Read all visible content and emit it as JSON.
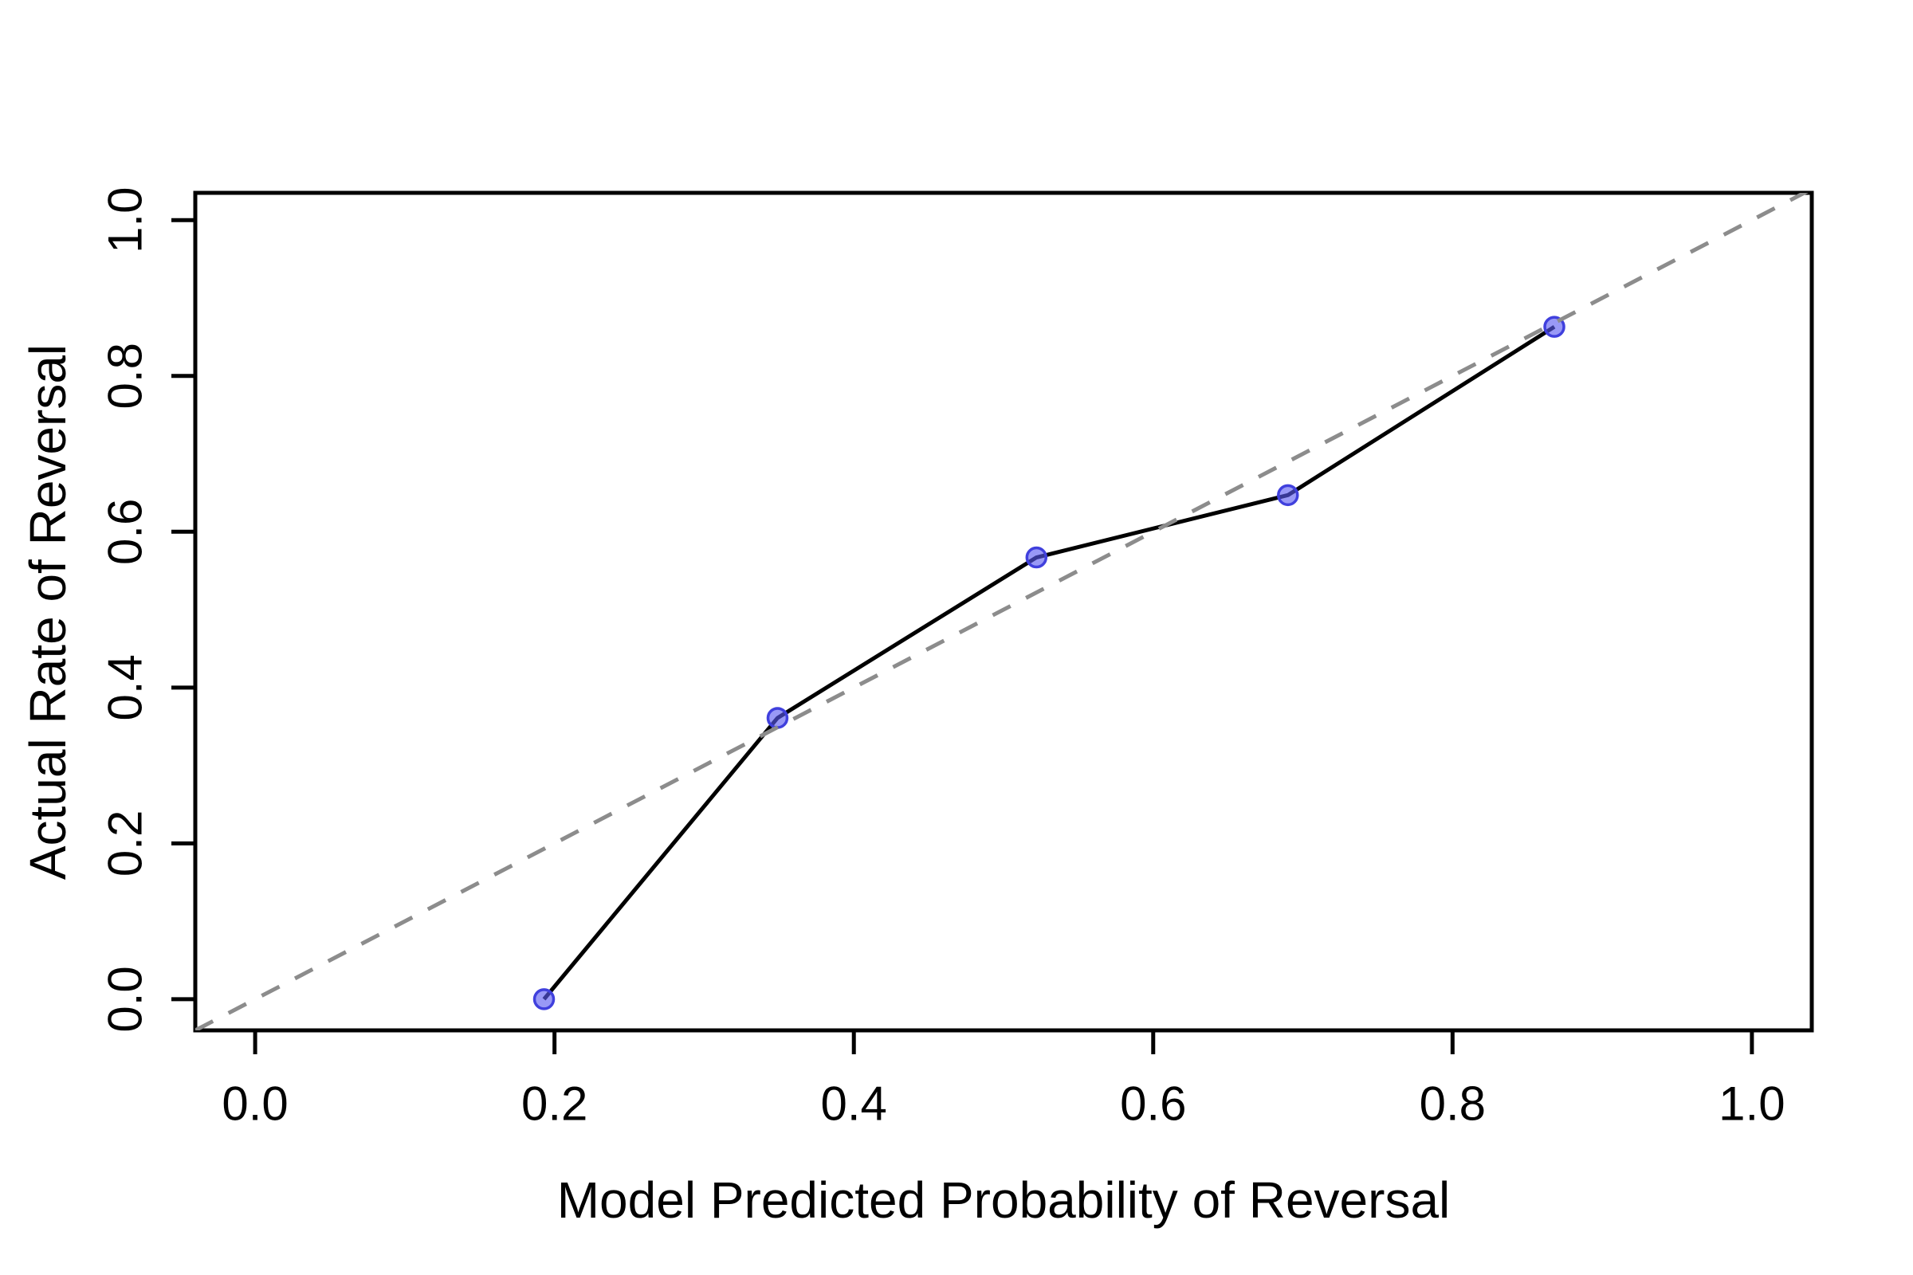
{
  "figure": {
    "background": "#ffffff",
    "axis_color": "#000000",
    "text_color": "#000000"
  },
  "chart_data": {
    "type": "line",
    "title": "",
    "xlabel": "Model Predicted Probability of Reversal",
    "ylabel": "Actual Rate of Reversal",
    "xlim": [
      -0.04,
      1.04
    ],
    "ylim": [
      -0.04,
      1.035
    ],
    "x_ticks": [
      0.0,
      0.2,
      0.4,
      0.6,
      0.8,
      1.0
    ],
    "y_ticks": [
      0.0,
      0.2,
      0.4,
      0.6,
      0.8,
      1.0
    ],
    "x_tick_labels": [
      "0.0",
      "0.2",
      "0.4",
      "0.6",
      "0.8",
      "1.0"
    ],
    "y_tick_labels": [
      "0.0",
      "0.2",
      "0.4",
      "0.6",
      "0.8",
      "1.0"
    ],
    "grid": false,
    "legend": null,
    "series": [
      {
        "name": "calibration-curve",
        "kind": "line-with-markers",
        "line_color": "#000000",
        "line_width": 5,
        "marker": "circle",
        "marker_radius": 12,
        "marker_fill": "#5a5af0",
        "marker_fill_opacity": 0.62,
        "marker_stroke": "#4040dd",
        "marker_stroke_width": 3.5,
        "points": [
          [
            0.193,
            0.0
          ],
          [
            0.349,
            0.361
          ],
          [
            0.522,
            0.567
          ],
          [
            0.69,
            0.647
          ],
          [
            0.868,
            0.863
          ]
        ]
      },
      {
        "name": "identity-reference",
        "kind": "dashed-line",
        "line_color": "#8c8c8c",
        "line_width": 5,
        "dash": [
          25,
          22
        ],
        "points": [
          [
            -0.04,
            -0.04
          ],
          [
            1.04,
            1.04
          ]
        ]
      }
    ]
  }
}
